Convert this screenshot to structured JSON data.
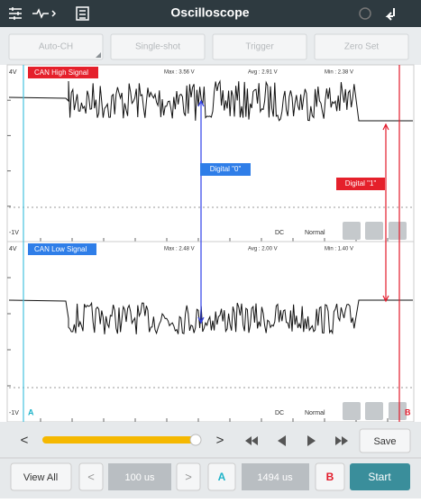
{
  "header": {
    "title": "Oscilloscope"
  },
  "toolbar": {
    "buttons": [
      "Auto-CH",
      "Single-shot",
      "Trigger",
      "Zero Set"
    ]
  },
  "panels": [
    {
      "top_label": "4V",
      "signal": "CAN High Signal",
      "max": "Max : 3.56 V",
      "avg": "Avg : 2.91 V",
      "min": "Min : 2.38 V",
      "bottom_label": "-1V",
      "coupling": "DC",
      "mode": "Normal"
    },
    {
      "top_label": "4V",
      "signal": "CAN Low Signal",
      "max": "Max : 2.48 V",
      "avg": "Avg : 2.00 V",
      "min": "Min : 1.40 V",
      "bottom_label": "-1V",
      "coupling": "DC",
      "mode": "Normal",
      "cursor_a": "A",
      "cursor_b": "B"
    }
  ],
  "annotations": {
    "digital_0": "Digital \"0\"",
    "digital_1": "Digital \"1\""
  },
  "controls": {
    "prev": "<",
    "next": ">",
    "save": "Save",
    "view_all": "View All",
    "dec": "<",
    "time_div": "100 us",
    "inc": ">",
    "a": "A",
    "time_pos": "1494 us",
    "b": "B",
    "start": "Start"
  }
}
